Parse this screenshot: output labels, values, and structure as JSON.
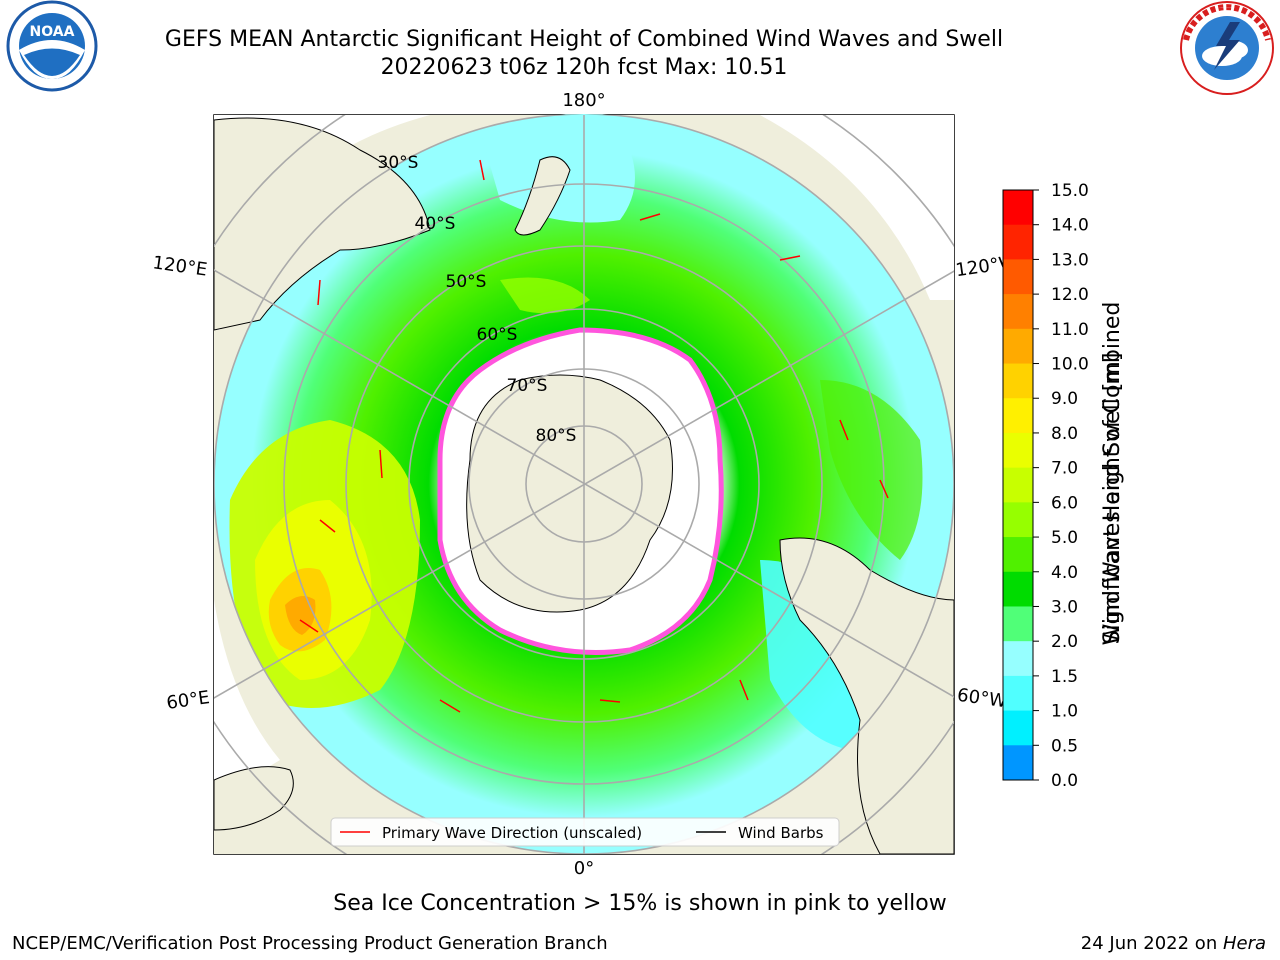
{
  "header": {
    "title_line1": "GEFS MEAN Antarctic Significant Height of Combined Wind Waves and Swell",
    "title_line2": "20220623 t06z 120h fcst   Max: 10.51"
  },
  "logos": {
    "left": {
      "name": "noara-logo",
      "text": "NOAA"
    },
    "right": {
      "name": "nws-logo",
      "text": "NATIONAL WEATHER SERVICE"
    }
  },
  "map": {
    "longitude_labels": {
      "top": "180°",
      "bottom": "0°",
      "left_upper": "120°E",
      "left_lower": "60°E",
      "right_upper": "120°W",
      "right_lower": "60°W"
    },
    "latitude_labels": [
      "30°S",
      "40°S",
      "50°S",
      "60°S",
      "70°S",
      "80°S"
    ],
    "legend": {
      "primary": "Primary Wave Direction (unscaled)",
      "barbs": "Wind Barbs"
    }
  },
  "colorbar": {
    "label_line1": "Significant Height of Combined",
    "label_line2": "Wind Waves and Swell [m]",
    "ticks": [
      "15.0",
      "14.0",
      "13.0",
      "12.0",
      "11.0",
      "10.0",
      "9.0",
      "8.0",
      "7.0",
      "6.0",
      "5.0",
      "4.0",
      "3.0",
      "2.0",
      "1.5",
      "1.0",
      "0.5",
      "0.0"
    ],
    "colors": [
      "#ff0000",
      "#ff2400",
      "#ff5a00",
      "#ff8000",
      "#ffaa00",
      "#ffd200",
      "#fff000",
      "#eaff00",
      "#c8ff00",
      "#96ff00",
      "#50f000",
      "#00dc00",
      "#50ff78",
      "#96ffff",
      "#50ffff",
      "#00f0ff",
      "#0096ff",
      "#0000ff"
    ]
  },
  "note": "Sea Ice Concentration > 15% is shown in pink to yellow",
  "footer": {
    "left": "NCEP/EMC/Verification Post Processing Product Generation Branch",
    "right_text": "24 Jun 2022 on ",
    "right_italic": "Hera"
  }
}
